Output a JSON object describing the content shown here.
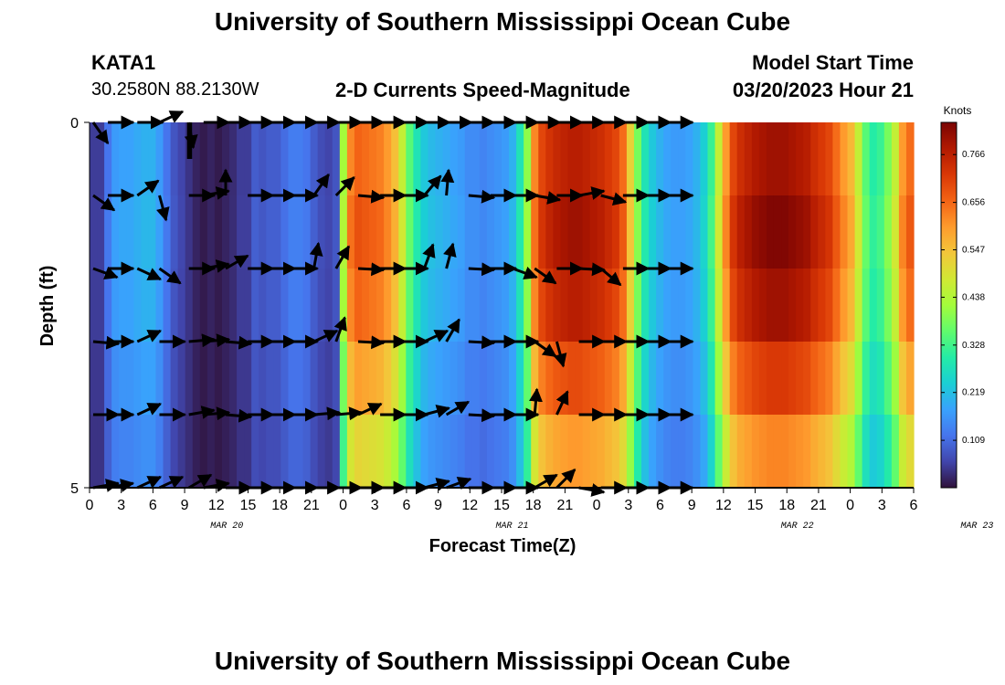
{
  "header": {
    "title": "University of Southern Mississippi Ocean Cube",
    "station": "KATA1",
    "coordinates": "30.2580N  88.2130W",
    "subtitle": "2-D Currents Speed-Magnitude",
    "model_start_label": "Model Start Time",
    "model_start_value": "03/20/2023 Hour 21"
  },
  "footer": {
    "title": "University of Southern Mississippi Ocean Cube"
  },
  "chart_data": {
    "type": "heatmap",
    "title": "2-D Currents Speed-Magnitude",
    "xlabel": "Forecast Time(Z)",
    "ylabel": "Depth (ft)",
    "ylim": [
      0,
      5
    ],
    "y_tick_labels": [
      "0",
      "5"
    ],
    "x_tick_labels": [
      "0",
      "3",
      "6",
      "9",
      "12",
      "15",
      "18",
      "21",
      "0",
      "3",
      "6",
      "9",
      "12",
      "15",
      "18",
      "21",
      "0",
      "3",
      "6",
      "9",
      "12",
      "15",
      "18",
      "21",
      "0",
      "3",
      "6"
    ],
    "date_labels": [
      {
        "label": "MAR 20",
        "tick_index": 4.33
      },
      {
        "label": "MAR 21",
        "tick_index": 13.33
      },
      {
        "label": "MAR 22",
        "tick_index": 22.33
      },
      {
        "label": "MAR 23",
        "tick_index": 28
      }
    ],
    "colorbar": {
      "unit_label": "Knots",
      "ticks": [
        "0.766",
        "0.656",
        "0.547",
        "0.438",
        "0.328",
        "0.219",
        "0.109"
      ],
      "min": 0.0,
      "max": 0.84,
      "stops": [
        "#30123b",
        "#4145ab",
        "#4675ed",
        "#39a2fc",
        "#1bcfd4",
        "#24eca6",
        "#61fc6c",
        "#a4fc3b",
        "#d1e834",
        "#f3c63a",
        "#fe9b2d",
        "#f36315",
        "#d93806",
        "#b11901",
        "#7a0403"
      ]
    },
    "rows": 5,
    "hours_per_column": 1,
    "row_speed_factors": [
      1.0,
      1.04,
      1.0,
      0.9,
      0.78
    ],
    "speed_series_knots": [
      0.05,
      0.05,
      0.12,
      0.17,
      0.18,
      0.18,
      0.19,
      0.2,
      0.2,
      0.17,
      0.12,
      0.08,
      0.06,
      0.04,
      0.02,
      0.01,
      0.02,
      0.01,
      0.02,
      0.03,
      0.05,
      0.05,
      0.09,
      0.08,
      0.09,
      0.09,
      0.11,
      0.13,
      0.13,
      0.12,
      0.09,
      0.07,
      0.06,
      0.08,
      0.42,
      0.62,
      0.66,
      0.65,
      0.64,
      0.63,
      0.6,
      0.55,
      0.46,
      0.35,
      0.28,
      0.23,
      0.21,
      0.2,
      0.19,
      0.18,
      0.17,
      0.15,
      0.15,
      0.14,
      0.15,
      0.16,
      0.17,
      0.2,
      0.28,
      0.4,
      0.62,
      0.7,
      0.73,
      0.75,
      0.76,
      0.77,
      0.77,
      0.76,
      0.75,
      0.74,
      0.72,
      0.7,
      0.65,
      0.52,
      0.38,
      0.28,
      0.23,
      0.2,
      0.18,
      0.17,
      0.17,
      0.18,
      0.2,
      0.24,
      0.32,
      0.46,
      0.6,
      0.7,
      0.74,
      0.76,
      0.78,
      0.79,
      0.8,
      0.8,
      0.8,
      0.79,
      0.78,
      0.77,
      0.74,
      0.72,
      0.7,
      0.65,
      0.6,
      0.56,
      0.46,
      0.35,
      0.3,
      0.32,
      0.38,
      0.46,
      0.6,
      0.65
    ],
    "dark_bar": {
      "hour": 13,
      "depth_start": 0,
      "depth_end": 0.5
    },
    "arrow_columns_hours": [
      0,
      2,
      6,
      9,
      13,
      15,
      18,
      21,
      24,
      27,
      30,
      33,
      36,
      39,
      42,
      45,
      48,
      51,
      54,
      57,
      60,
      63,
      66,
      69,
      72,
      75,
      78
    ],
    "arrow_directions_deg_by_row": [
      [
        -55,
        0,
        0,
        25,
        -80,
        0,
        0,
        0,
        0,
        0,
        0,
        0,
        0,
        0,
        0,
        0,
        0,
        0,
        0,
        0,
        0,
        0,
        0,
        0,
        0,
        0,
        0
      ],
      [
        -35,
        0,
        35,
        -75,
        0,
        10,
        90,
        0,
        0,
        0,
        55,
        45,
        -5,
        0,
        0,
        50,
        85,
        -5,
        0,
        0,
        -10,
        0,
        10,
        -15,
        0,
        0,
        0
      ],
      [
        -20,
        0,
        -25,
        -35,
        0,
        10,
        30,
        0,
        0,
        0,
        80,
        60,
        -3,
        0,
        0,
        70,
        75,
        -3,
        0,
        -20,
        -35,
        0,
        -3,
        -40,
        0,
        0,
        0
      ],
      [
        -5,
        0,
        25,
        0,
        5,
        5,
        -5,
        0,
        0,
        0,
        25,
        70,
        -3,
        0,
        0,
        25,
        60,
        -3,
        0,
        0,
        -35,
        -75,
        0,
        0,
        0,
        0,
        0
      ],
      [
        0,
        0,
        25,
        0,
        10,
        5,
        -5,
        0,
        0,
        0,
        5,
        5,
        25,
        0,
        0,
        15,
        30,
        -3,
        0,
        0,
        85,
        65,
        0,
        0,
        0,
        0,
        0
      ],
      [
        10,
        10,
        25,
        25,
        30,
        10,
        0,
        0,
        0,
        0,
        0,
        0,
        0,
        0,
        0,
        15,
        20,
        0,
        0,
        0,
        30,
        45,
        -10,
        0,
        0,
        0,
        0
      ]
    ]
  }
}
